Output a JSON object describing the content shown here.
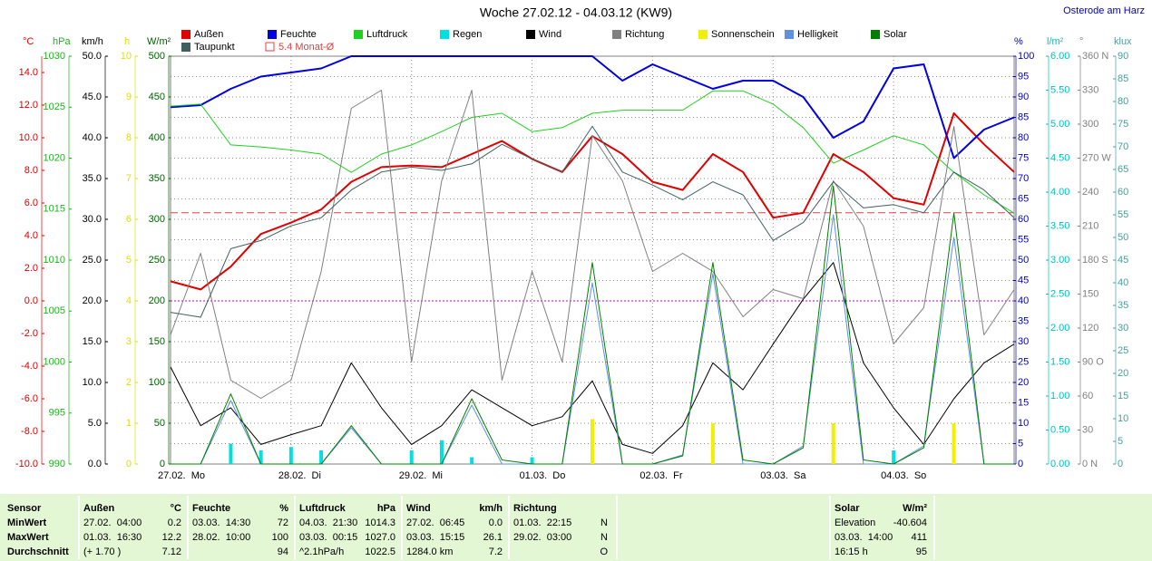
{
  "chart_data": {
    "type": "line",
    "title": "Woche 27.02.12 - 04.03.12 (KW9)",
    "location": "Osterode am Harz",
    "x": [
      0,
      6,
      12,
      18,
      24,
      30,
      36,
      42,
      48,
      54,
      60,
      66,
      72,
      78,
      84,
      90,
      96,
      102,
      108,
      114,
      120,
      126,
      132,
      138,
      144,
      150,
      156,
      162,
      168
    ],
    "xlim": [
      0,
      168
    ],
    "xticks": [
      {
        "value": 0,
        "label": "27.02.  Mo"
      },
      {
        "value": 24,
        "label": "28.02.  Di"
      },
      {
        "value": 48,
        "label": "29.02.  Mi"
      },
      {
        "value": 72,
        "label": "01.03.  Do"
      },
      {
        "value": 96,
        "label": "02.03.  Fr"
      },
      {
        "value": 120,
        "label": "03.03.  Sa"
      },
      {
        "value": 144,
        "label": "04.03.  So"
      }
    ],
    "axes": {
      "C": {
        "label": "°C",
        "side": "left",
        "color": "#e00000",
        "lim": [
          -10,
          15
        ],
        "ticks": [
          {
            "value": -10,
            "label": "-10.0"
          },
          {
            "value": -8,
            "label": "-8.0"
          },
          {
            "value": -6,
            "label": "-6.0"
          },
          {
            "value": -4,
            "label": "-4.0"
          },
          {
            "value": -2,
            "label": "-2.0"
          },
          {
            "value": 0,
            "label": "0.0"
          },
          {
            "value": 2,
            "label": "2.0"
          },
          {
            "value": 4,
            "label": "4.0"
          },
          {
            "value": 6,
            "label": "6.0"
          },
          {
            "value": 8,
            "label": "8.0"
          },
          {
            "value": 10,
            "label": "10.0"
          },
          {
            "value": 12,
            "label": "12.0"
          },
          {
            "value": 14,
            "label": "14.0"
          }
        ]
      },
      "hPa": {
        "label": "hPa",
        "side": "left",
        "color": "#20b020",
        "lim": [
          990,
          1030
        ],
        "ticks": [
          990,
          995,
          1000,
          1005,
          1010,
          1015,
          1020,
          1025,
          1030
        ]
      },
      "kmh": {
        "label": "km/h",
        "side": "left",
        "color": "#000000",
        "lim": [
          0,
          50
        ],
        "ticks": [
          {
            "value": 0,
            "label": "0.0"
          },
          {
            "value": 5,
            "label": "5.0"
          },
          {
            "value": 10,
            "label": "10.0"
          },
          {
            "value": 15,
            "label": "15.0"
          },
          {
            "value": 20,
            "label": "20.0"
          },
          {
            "value": 25,
            "label": "25.0"
          },
          {
            "value": 30,
            "label": "30.0"
          },
          {
            "value": 35,
            "label": "35.0"
          },
          {
            "value": 40,
            "label": "40.0"
          },
          {
            "value": 45,
            "label": "45.0"
          },
          {
            "value": 50,
            "label": "50.0"
          }
        ]
      },
      "h": {
        "label": "h",
        "side": "left",
        "color": "#e0e000",
        "lim": [
          0,
          10
        ],
        "ticks": [
          0,
          1,
          2,
          3,
          4,
          5,
          6,
          7,
          8,
          9,
          10
        ]
      },
      "W": {
        "label": "W/m²",
        "side": "left",
        "color": "#006000",
        "lim": [
          0,
          500
        ],
        "ticks": [
          0,
          50,
          100,
          150,
          200,
          250,
          300,
          350,
          400,
          450,
          500
        ]
      },
      "pct": {
        "label": "%",
        "side": "right",
        "color": "#0000c0",
        "grid": true,
        "lim": [
          0,
          100
        ],
        "ticks": [
          0,
          5,
          10,
          15,
          20,
          25,
          30,
          35,
          40,
          45,
          50,
          55,
          60,
          65,
          70,
          75,
          80,
          85,
          90,
          95,
          100
        ]
      },
      "l": {
        "label": "l/m²",
        "side": "right",
        "color": "#00c0c0",
        "lim": [
          0,
          6
        ],
        "ticks": [
          {
            "value": 0,
            "label": "0.00"
          },
          {
            "value": 0.5,
            "label": "0.50"
          },
          {
            "value": 1,
            "label": "1.00"
          },
          {
            "value": 1.5,
            "label": "1.50"
          },
          {
            "value": 2,
            "label": "2.00"
          },
          {
            "value": 2.5,
            "label": "2.50"
          },
          {
            "value": 3,
            "label": "3.00"
          },
          {
            "value": 3.5,
            "label": "3.50"
          },
          {
            "value": 4,
            "label": "4.00"
          },
          {
            "value": 4.5,
            "label": "4.50"
          },
          {
            "value": 5,
            "label": "5.00"
          },
          {
            "value": 5.5,
            "label": "5.50"
          },
          {
            "value": 6,
            "label": "6.00"
          }
        ]
      },
      "deg": {
        "label": "°",
        "side": "right",
        "color": "#808080",
        "lim": [
          0,
          360
        ],
        "ticks": [
          {
            "value": 0,
            "label": "0 N"
          },
          30,
          60,
          {
            "value": 90,
            "label": "90 O"
          },
          120,
          150,
          {
            "value": 180,
            "label": "180 S"
          },
          210,
          240,
          {
            "value": 270,
            "label": "270 W"
          },
          300,
          330,
          {
            "value": 360,
            "label": "360 N"
          }
        ]
      },
      "klux": {
        "label": "klux",
        "side": "right",
        "color": "#40a0a0",
        "lim": [
          0,
          90
        ],
        "ticks": [
          0,
          5,
          10,
          15,
          20,
          25,
          30,
          35,
          40,
          45,
          50,
          55,
          60,
          65,
          70,
          75,
          80,
          85,
          90
        ]
      }
    },
    "series": [
      {
        "name": "Außen",
        "kind": "line",
        "axis": "C",
        "color": "#e00000",
        "width": 2,
        "values": [
          1.2,
          0.7,
          2.1,
          4.1,
          4.8,
          5.6,
          7.3,
          8.2,
          8.3,
          8.2,
          9.0,
          9.8,
          8.7,
          7.9,
          10.1,
          9.0,
          7.3,
          6.8,
          9.0,
          7.9,
          5.1,
          5.4,
          9.0,
          7.9,
          6.3,
          5.9,
          11.5,
          9.6,
          7.9
        ]
      },
      {
        "name": "Feuchte",
        "kind": "line",
        "axis": "pct",
        "color": "#0000e0",
        "width": 2,
        "values": [
          87.5,
          88,
          92,
          95,
          96,
          97,
          100,
          100,
          100,
          100,
          100,
          100,
          100,
          100,
          100,
          94,
          98,
          95,
          92,
          94,
          94,
          90,
          80,
          84,
          97,
          98,
          75,
          82,
          85
        ]
      },
      {
        "name": "Luftdruck",
        "kind": "line",
        "axis": "hPa",
        "color": "#20d020",
        "width": 1,
        "values": [
          1025.1,
          1025.3,
          1021.3,
          1021.1,
          1020.8,
          1020.4,
          1018.6,
          1020.4,
          1021.3,
          1022.6,
          1024.0,
          1024.4,
          1022.6,
          1023.0,
          1024.4,
          1024.7,
          1024.7,
          1024.7,
          1026.6,
          1026.6,
          1025.3,
          1023.0,
          1019.5,
          1020.8,
          1022.2,
          1021.3,
          1018.6,
          1016.4,
          1014.6
        ]
      },
      {
        "name": "Regen",
        "kind": "bar",
        "axis": "l",
        "color": "#00e0e0",
        "values": [
          0,
          0,
          0.3,
          0.2,
          0.25,
          0.2,
          0,
          0,
          0.2,
          0.35,
          0.1,
          0,
          0.1,
          0,
          0,
          0,
          0,
          0,
          0,
          0,
          0,
          0,
          0,
          0,
          0.2,
          0,
          0,
          0,
          0
        ]
      },
      {
        "name": "Wind",
        "kind": "line",
        "axis": "kmh",
        "color": "#000000",
        "width": 1,
        "values": [
          11.9,
          4.7,
          6.9,
          2.4,
          3.6,
          4.7,
          12.4,
          6.9,
          2.4,
          4.7,
          9.1,
          6.9,
          4.7,
          5.8,
          10.2,
          2.4,
          1.3,
          4.7,
          12.4,
          9.1,
          14.7,
          20.2,
          24.7,
          12.4,
          6.9,
          2.4,
          8.0,
          12.4,
          14.7
        ]
      },
      {
        "name": "Richtung",
        "kind": "line",
        "axis": "deg",
        "color": "#808080",
        "width": 1,
        "values": [
          114,
          186,
          74,
          58,
          74,
          170,
          314,
          330,
          90,
          250,
          330,
          74,
          170,
          90,
          290,
          250,
          170,
          186,
          170,
          130,
          154,
          146,
          250,
          210,
          106,
          138,
          298,
          114,
          154
        ]
      },
      {
        "name": "Sonnenschein",
        "kind": "bar",
        "axis": "h",
        "color": "#f0f000",
        "values": [
          0,
          0,
          0,
          0,
          0,
          0,
          0,
          0,
          0,
          0,
          0,
          0,
          0,
          0,
          1.1,
          0,
          0,
          0,
          1.0,
          0,
          0,
          0,
          1.0,
          0,
          0,
          0,
          1.0,
          0,
          0
        ]
      },
      {
        "name": "Helligkeit",
        "kind": "line",
        "axis": "klux",
        "color": "#6090e0",
        "width": 1,
        "values": [
          0,
          0,
          14,
          0,
          0,
          0,
          8,
          0,
          0,
          0,
          13,
          0,
          0,
          0,
          40,
          0,
          0,
          2,
          42,
          0,
          0,
          4,
          55,
          0,
          0,
          4,
          50,
          0,
          0
        ]
      },
      {
        "name": "Solar",
        "kind": "line",
        "axis": "W",
        "color": "#008000",
        "width": 1,
        "values": [
          0,
          0,
          86,
          0,
          0,
          0,
          47,
          0,
          0,
          0,
          80,
          5,
          0,
          0,
          247,
          0,
          0,
          10,
          247,
          5,
          0,
          20,
          341,
          5,
          0,
          20,
          308,
          0,
          0
        ]
      },
      {
        "name": "Taupunkt",
        "kind": "line",
        "axis": "C",
        "color": "#406060",
        "width": 1,
        "values": [
          -0.7,
          -1.0,
          3.2,
          3.7,
          4.6,
          5.1,
          6.8,
          7.9,
          8.2,
          8.0,
          8.4,
          9.6,
          8.7,
          7.9,
          10.7,
          7.9,
          7.1,
          6.2,
          7.3,
          6.5,
          3.7,
          4.8,
          7.3,
          5.7,
          5.9,
          5.4,
          7.9,
          6.8,
          5.1
        ]
      }
    ],
    "reference_line": {
      "name": "5.4 Monat-Ø",
      "value": 5.4,
      "axis": "C",
      "color": "#e04040"
    }
  },
  "stats": {
    "labels": [
      "Sensor",
      "MinWert",
      "MaxWert",
      "Durchschnitt"
    ],
    "groups": [
      {
        "name": "Außen",
        "unit": "°C",
        "rows": [
          [
            "27.02.  04:00",
            "0.2"
          ],
          [
            "01.03.  16:30",
            "12.2"
          ],
          [
            "(+ 1.70 )",
            "7.12"
          ]
        ]
      },
      {
        "name": "Feuchte",
        "unit": "%",
        "rows": [
          [
            "03.03.  14:30",
            "72"
          ],
          [
            "28.02.  10:00",
            "100"
          ],
          [
            "94"
          ]
        ]
      },
      {
        "name": "Luftdruck",
        "unit": "hPa",
        "rows": [
          [
            "04.03.  21:30",
            "1014.3"
          ],
          [
            "03.03.  00:15",
            "1027.0"
          ],
          [
            "^2.1hPa/h",
            "1022.5"
          ]
        ]
      },
      {
        "name": "Wind",
        "unit": "km/h",
        "rows": [
          [
            "27.02.  06:45",
            "0.0"
          ],
          [
            "03.03.  15:15",
            "26.1"
          ],
          [
            "1284.0 km",
            "7.2"
          ]
        ]
      },
      {
        "name": "Richtung",
        "rows": [
          [
            "01.03.  22:15",
            "N"
          ],
          [
            "29.02.  03:00",
            "N"
          ],
          [
            "O"
          ]
        ]
      },
      {
        "name": "Solar",
        "unit": "W/m²",
        "rows": [
          [
            "Elevation",
            "-40.604"
          ],
          [
            "03.03.  14:00",
            "411"
          ],
          [
            "16:15 h",
            "95"
          ]
        ]
      }
    ]
  }
}
